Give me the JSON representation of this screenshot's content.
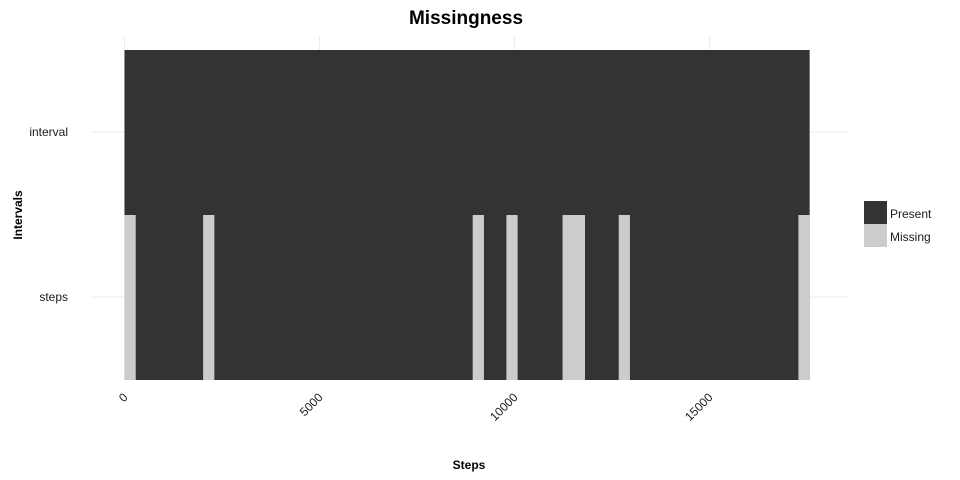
{
  "chart_data": {
    "type": "heatmap",
    "title": "Missingness",
    "xlabel": "Steps",
    "ylabel": "Intervals",
    "xlim": [
      0,
      17568
    ],
    "x_ticks": [
      "0",
      "5000",
      "10000",
      "15000"
    ],
    "x_tick_values": [
      0,
      5000,
      10000,
      15000
    ],
    "rows": [
      "interval",
      "steps"
    ],
    "colors": {
      "Present": "#333333",
      "Missing": "#cccccc"
    },
    "legend": {
      "position": "right",
      "entries": [
        "Present",
        "Missing"
      ]
    },
    "grid": true,
    "series": [
      {
        "name": "interval",
        "missing_ranges": []
      },
      {
        "name": "steps",
        "missing_ranges": [
          [
            0,
            288
          ],
          [
            2016,
            2304
          ],
          [
            8928,
            9216
          ],
          [
            9792,
            10080
          ],
          [
            11232,
            11808
          ],
          [
            12672,
            12960
          ],
          [
            17280,
            17568
          ]
        ]
      }
    ]
  }
}
